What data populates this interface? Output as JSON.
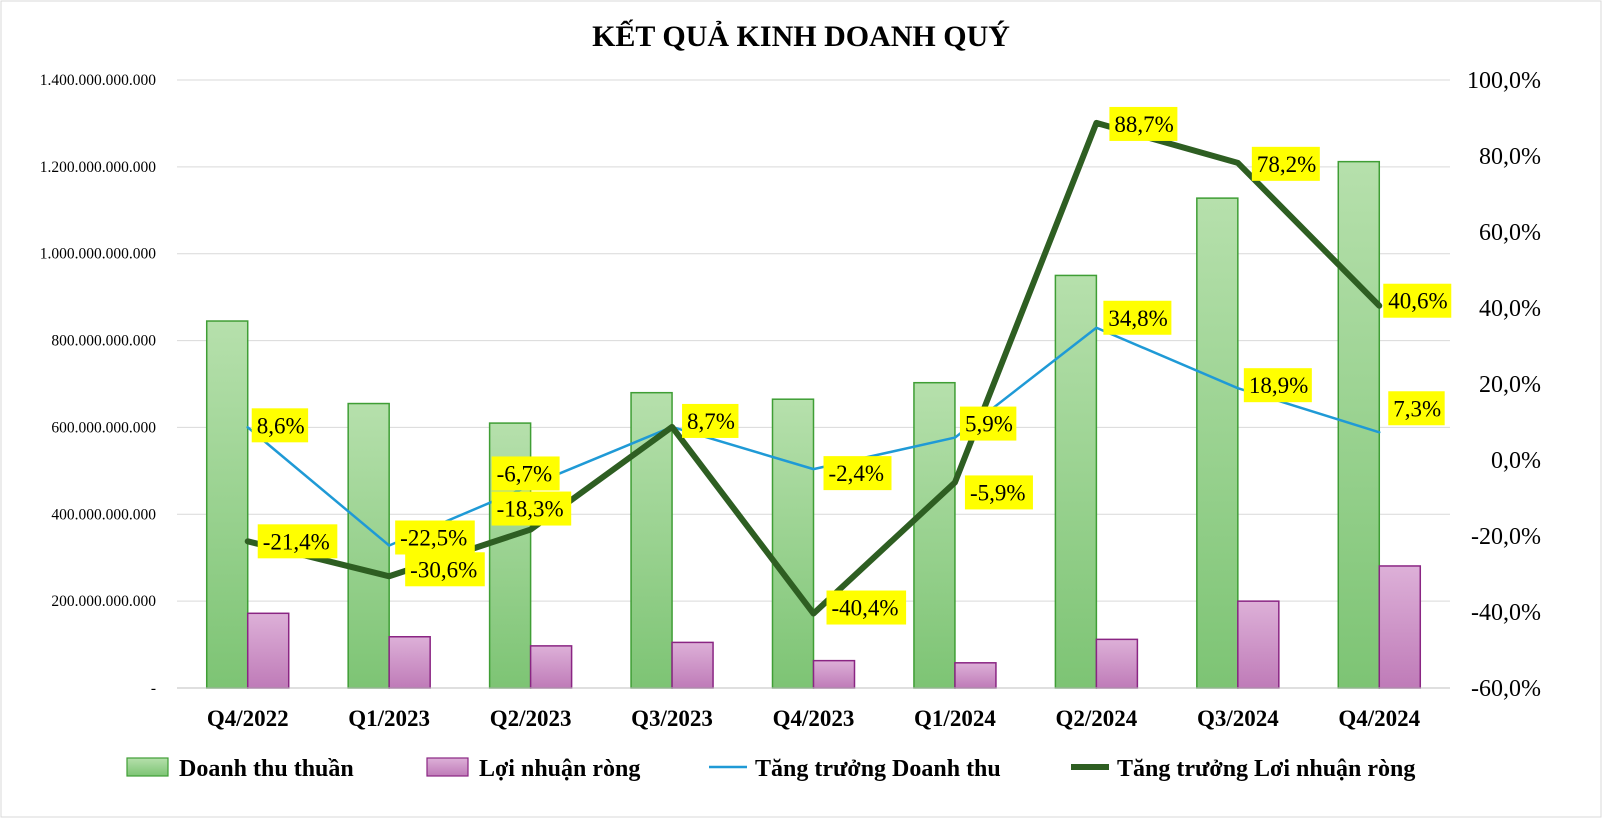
{
  "chart_data": {
    "type": "bar",
    "title": "KẾT QUẢ KINH DOANH QUÝ",
    "categories": [
      "Q4/2022",
      "Q1/2023",
      "Q2/2023",
      "Q3/2023",
      "Q4/2023",
      "Q1/2024",
      "Q2/2024",
      "Q3/2024",
      "Q4/2024"
    ],
    "series": [
      {
        "name": "Doanh thu thuần",
        "type": "bar",
        "axis": "left",
        "color": "#8fcf88",
        "values": [
          845000000000,
          655000000000,
          610000000000,
          680000000000,
          665000000000,
          703000000000,
          950000000000,
          1128000000000,
          1212000000000
        ]
      },
      {
        "name": "Lợi nhuận ròng",
        "type": "bar",
        "axis": "left",
        "color": "#cc8fc6",
        "values": [
          172000000000,
          118000000000,
          97000000000,
          105000000000,
          63000000000,
          58000000000,
          112000000000,
          200000000000,
          281000000000
        ]
      },
      {
        "name": "Tăng trưởng Doanh thu",
        "type": "line",
        "axis": "right",
        "color": "#1f9ad6",
        "values": [
          8.6,
          -22.5,
          -6.7,
          8.7,
          -2.4,
          5.9,
          34.8,
          18.9,
          7.3
        ],
        "labels": [
          "8,6%",
          "-22,5%",
          "-6,7%",
          "8,7%",
          "-2,4%",
          "5,9%",
          "34,8%",
          "18,9%",
          "7,3%"
        ]
      },
      {
        "name": "Tăng trưởng Lơi nhuận ròng",
        "type": "line",
        "axis": "right",
        "color": "#2e5e22",
        "values": [
          -21.4,
          -30.6,
          -18.3,
          8.7,
          -40.4,
          -5.9,
          88.7,
          78.2,
          40.6
        ],
        "labels": [
          "-21,4%",
          "-30,6%",
          "-18,3%",
          "",
          "-40,4%",
          "-5,9%",
          "88,7%",
          "78,2%",
          "40,6%"
        ]
      }
    ],
    "left_axis": {
      "ylim": [
        0,
        1400000000000
      ],
      "ticks": [
        0,
        200000000000,
        400000000000,
        600000000000,
        800000000000,
        1000000000000,
        1200000000000,
        1400000000000
      ],
      "tick_labels": [
        "-",
        "200.000.000.000",
        "400.000.000.000",
        "600.000.000.000",
        "800.000.000.000",
        "1.000.000.000.000",
        "1.200.000.000.000",
        "1.400.000.000.000"
      ]
    },
    "right_axis": {
      "ylim": [
        -60,
        100
      ],
      "ticks": [
        -60,
        -40,
        -20,
        0,
        20,
        40,
        60,
        80,
        100
      ],
      "tick_labels": [
        "-60,0%",
        "-40,0%",
        "-20,0%",
        "0,0%",
        "20,0%",
        "40,0%",
        "60,0%",
        "80,0%",
        "100,0%"
      ]
    },
    "grid": true,
    "legend_position": "bottom",
    "label_highlight": "#ffff00"
  }
}
